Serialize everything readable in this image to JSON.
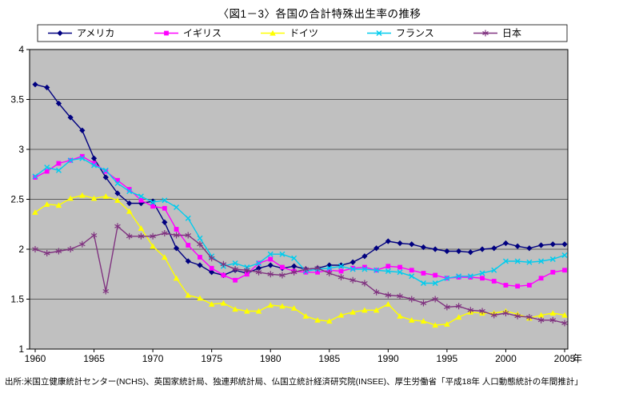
{
  "page": {
    "title": "〈図1－3〉各国の合計特殊出生率の推移",
    "source": "出所:米国立健康統計センター(NCHS)、英国家統計局、独連邦統計局、仏国立統計経済研究院(INSEE)、厚生労働省「平成18年  人口動態統計の年間推計」"
  },
  "chart_data": {
    "type": "line",
    "title": "〈図1－3〉各国の合計特殊出生率の推移",
    "xlabel": "年",
    "ylabel": "",
    "ylim": [
      1,
      4
    ],
    "yticks": [
      1,
      1.5,
      2,
      2.5,
      3,
      3.5,
      4
    ],
    "xticks": [
      1960,
      1965,
      1970,
      1975,
      1980,
      1985,
      1990,
      1995,
      2000,
      2005
    ],
    "plot_bg": "#c0c0c0",
    "grid": "horizontal",
    "legend_position": "top",
    "x": [
      1960,
      1961,
      1962,
      1963,
      1964,
      1965,
      1966,
      1967,
      1968,
      1969,
      1970,
      1971,
      1972,
      1973,
      1974,
      1975,
      1976,
      1977,
      1978,
      1979,
      1980,
      1981,
      1982,
      1983,
      1984,
      1985,
      1986,
      1987,
      1988,
      1989,
      1990,
      1991,
      1992,
      1993,
      1994,
      1995,
      1996,
      1997,
      1998,
      1999,
      2000,
      2001,
      2002,
      2003,
      2004,
      2005
    ],
    "series": [
      {
        "id": "usa",
        "name": "アメリカ",
        "color": "#000080",
        "marker": "diamond",
        "values": [
          3.65,
          3.62,
          3.46,
          3.32,
          3.19,
          2.91,
          2.72,
          2.56,
          2.46,
          2.46,
          2.48,
          2.27,
          2.01,
          1.88,
          1.84,
          1.77,
          1.74,
          1.79,
          1.76,
          1.81,
          1.84,
          1.81,
          1.83,
          1.8,
          1.81,
          1.84,
          1.84,
          1.87,
          1.93,
          2.01,
          2.08,
          2.06,
          2.05,
          2.02,
          2.0,
          1.98,
          1.98,
          1.97,
          2.0,
          2.01,
          2.06,
          2.03,
          2.01,
          2.04,
          2.05,
          2.05
        ]
      },
      {
        "id": "uk",
        "name": "イギリス",
        "color": "#ff00ff",
        "marker": "square",
        "values": [
          2.72,
          2.78,
          2.86,
          2.89,
          2.93,
          2.86,
          2.78,
          2.69,
          2.6,
          2.49,
          2.43,
          2.41,
          2.2,
          2.04,
          1.92,
          1.81,
          1.74,
          1.69,
          1.75,
          1.86,
          1.9,
          1.82,
          1.78,
          1.77,
          1.77,
          1.79,
          1.78,
          1.81,
          1.82,
          1.79,
          1.83,
          1.82,
          1.79,
          1.76,
          1.74,
          1.71,
          1.72,
          1.72,
          1.71,
          1.68,
          1.64,
          1.63,
          1.64,
          1.71,
          1.77,
          1.79
        ]
      },
      {
        "id": "germany",
        "name": "ドイツ",
        "color": "#ffff00",
        "marker": "triangle",
        "values": [
          2.37,
          2.45,
          2.44,
          2.51,
          2.54,
          2.51,
          2.53,
          2.49,
          2.38,
          2.21,
          2.03,
          1.92,
          1.71,
          1.54,
          1.51,
          1.45,
          1.46,
          1.4,
          1.38,
          1.38,
          1.44,
          1.43,
          1.41,
          1.33,
          1.29,
          1.28,
          1.34,
          1.37,
          1.39,
          1.39,
          1.45,
          1.33,
          1.29,
          1.28,
          1.24,
          1.25,
          1.32,
          1.37,
          1.36,
          1.36,
          1.38,
          1.35,
          1.31,
          1.34,
          1.36,
          1.34
        ]
      },
      {
        "id": "france",
        "name": "フランス",
        "color": "#00ccee",
        "marker": "x",
        "values": [
          2.73,
          2.82,
          2.79,
          2.89,
          2.91,
          2.84,
          2.79,
          2.66,
          2.58,
          2.53,
          2.47,
          2.49,
          2.42,
          2.31,
          2.11,
          1.93,
          1.83,
          1.86,
          1.82,
          1.86,
          1.95,
          1.95,
          1.91,
          1.78,
          1.8,
          1.81,
          1.83,
          1.8,
          1.8,
          1.79,
          1.78,
          1.77,
          1.73,
          1.66,
          1.66,
          1.71,
          1.73,
          1.73,
          1.76,
          1.79,
          1.88,
          1.88,
          1.87,
          1.88,
          1.9,
          1.94
        ]
      },
      {
        "id": "japan",
        "name": "日本",
        "color": "#803380",
        "marker": "asterisk",
        "values": [
          2.0,
          1.96,
          1.98,
          2.0,
          2.05,
          2.14,
          1.58,
          2.23,
          2.13,
          2.13,
          2.13,
          2.16,
          2.14,
          2.14,
          2.05,
          1.91,
          1.85,
          1.8,
          1.79,
          1.77,
          1.75,
          1.74,
          1.77,
          1.8,
          1.81,
          1.76,
          1.72,
          1.69,
          1.66,
          1.57,
          1.54,
          1.53,
          1.5,
          1.46,
          1.5,
          1.42,
          1.43,
          1.39,
          1.38,
          1.34,
          1.36,
          1.33,
          1.32,
          1.29,
          1.29,
          1.26
        ]
      }
    ]
  }
}
